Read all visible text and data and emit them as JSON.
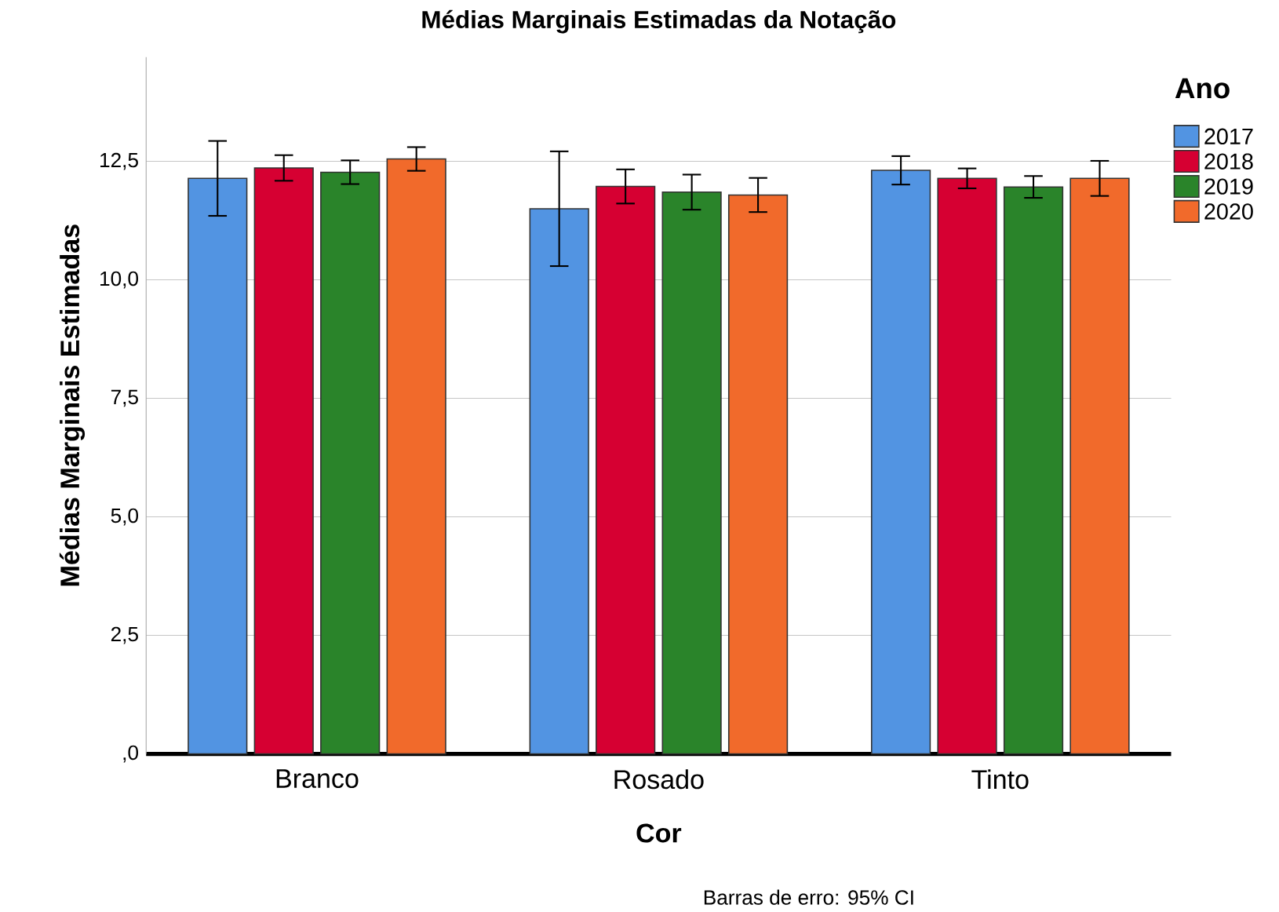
{
  "chart_data": {
    "type": "bar",
    "title": "Médias Marginais Estimadas da Notação",
    "xlabel": "Cor",
    "ylabel": "Médias Marginais Estimadas",
    "legend_title": "Ano",
    "categories": [
      "Branco",
      "Rosado",
      "Tinto"
    ],
    "series": [
      {
        "name": "2017",
        "color": "#5294e2",
        "values": [
          12.14,
          11.5,
          12.31
        ],
        "errors": [
          0.79,
          1.21,
          0.3
        ]
      },
      {
        "name": "2018",
        "color": "#d60032",
        "values": [
          12.36,
          11.97,
          12.14
        ],
        "errors": [
          0.27,
          0.36,
          0.21
        ]
      },
      {
        "name": "2019",
        "color": "#2a842a",
        "values": [
          12.27,
          11.85,
          11.96
        ],
        "errors": [
          0.25,
          0.37,
          0.23
        ]
      },
      {
        "name": "2020",
        "color": "#f16a2b",
        "values": [
          12.55,
          11.79,
          12.14
        ],
        "errors": [
          0.25,
          0.36,
          0.37
        ]
      }
    ],
    "ylim": [
      0,
      14.7
    ],
    "yticks": [
      {
        "value": 0,
        "label": ",0"
      },
      {
        "value": 2.5,
        "label": "2,5"
      },
      {
        "value": 5,
        "label": "5,0"
      },
      {
        "value": 7.5,
        "label": "7,5"
      },
      {
        "value": 10,
        "label": "10,0"
      },
      {
        "value": 12.5,
        "label": "12,5"
      }
    ],
    "grid": "y",
    "legend": "right",
    "annotations": [
      "Barras de erro: 95% CI"
    ]
  }
}
